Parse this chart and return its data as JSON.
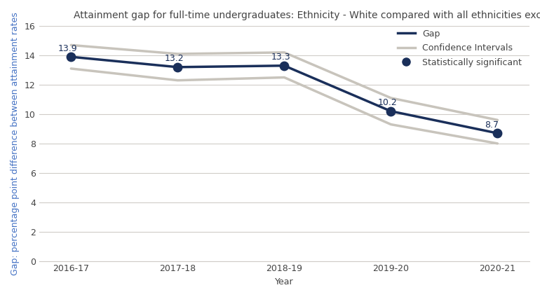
{
  "title": "Attainment gap for full-time undergraduates: Ethnicity - White compared with all ethnicities except white",
  "xlabel": "Year",
  "ylabel": "Gap: percentage point difference between attainment rates",
  "years": [
    "2016-17",
    "2017-18",
    "2018-19",
    "2019-20",
    "2020-21"
  ],
  "gap": [
    13.9,
    13.2,
    13.3,
    10.2,
    8.7
  ],
  "ci_upper": [
    14.7,
    14.1,
    14.2,
    11.1,
    9.6
  ],
  "ci_lower": [
    13.1,
    12.3,
    12.5,
    9.3,
    8.0
  ],
  "gap_color": "#1a2f5a",
  "ci_color": "#c8c4bc",
  "text_color": "#4472c4",
  "ylim": [
    0,
    16
  ],
  "yticks": [
    0,
    2,
    4,
    6,
    8,
    10,
    12,
    14,
    16
  ],
  "legend_gap": "Gap",
  "legend_ci": "Confidence Intervals",
  "legend_sig": "Statistically significant",
  "labels": [
    "13.9",
    "13.2",
    "13.3",
    "10.2",
    "8.7"
  ],
  "title_fontsize": 10,
  "axis_label_fontsize": 9,
  "tick_fontsize": 9,
  "annotation_fontsize": 9,
  "background_color": "#ffffff",
  "grid_color": "#d0ccc8"
}
